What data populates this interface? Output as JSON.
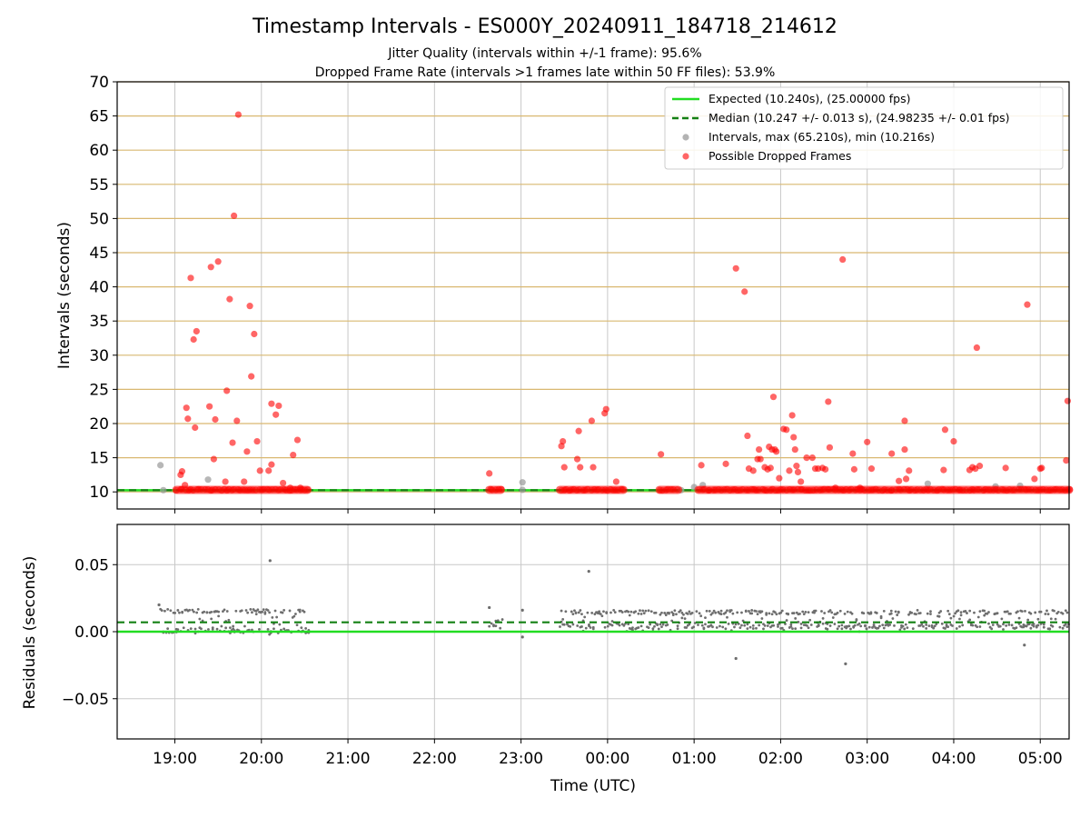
{
  "title": "Timestamp Intervals - ES000Y_20240911_184718_214612",
  "subtitle_1": "Jitter Quality (intervals within +/-1 frame): 95.6%",
  "subtitle_2": "Dropped Frame Rate (intervals >1 frames late within 50 FF files): 53.9%",
  "colors": {
    "expected": "#22dd22",
    "median": "#138013",
    "intervals": "#999999",
    "dropped": "#ff0000",
    "grid_top": "#d9b871",
    "grid": "#c8c8c8",
    "residual": "#6e6e6e"
  },
  "chart_data": [
    {
      "type": "scatter",
      "ylabel": "Intervals (seconds)",
      "ylim": [
        7.5,
        70
      ],
      "yticks": [
        "10",
        "15",
        "20",
        "25",
        "30",
        "35",
        "40",
        "45",
        "50",
        "55",
        "60",
        "65",
        "70"
      ],
      "xlim": [
        "2024-09-11 18:20",
        "2024-09-12 05:20"
      ],
      "grid": "horizontal (y)",
      "legend_position": "top-right",
      "legend": [
        "Expected (10.240s), (25.00000 fps)",
        "Median (10.247 +/- 0.013 s), (24.98235 +/- 0.01 fps)",
        "Intervals, max (65.210s), min (10.216s)",
        "Possible Dropped Frames"
      ],
      "expected_interval": 10.24,
      "median_interval": 10.247,
      "series": [
        {
          "name": "Intervals, max (65.210s), min (10.216s)",
          "points": [
            [
              "18:50",
              13.9
            ],
            [
              "18:52",
              10.25
            ],
            [
              "19:23",
              11.8
            ],
            [
              "23:01",
              11.4
            ],
            [
              "23:01",
              10.3
            ],
            [
              "00:51",
              10.25
            ],
            [
              "01:00",
              10.7
            ],
            [
              "01:06",
              11.0
            ],
            [
              "02:56",
              10.4
            ],
            [
              "03:42",
              11.2
            ],
            [
              "04:29",
              10.8
            ],
            [
              "04:46",
              10.9
            ]
          ]
        },
        {
          "name": "Possible Dropped Frames",
          "points": [
            [
              "19:04",
              12.5
            ],
            [
              "19:05",
              13.0
            ],
            [
              "19:07",
              11.0
            ],
            [
              "19:08",
              22.3
            ],
            [
              "19:09",
              20.7
            ],
            [
              "19:11",
              41.3
            ],
            [
              "19:13",
              32.3
            ],
            [
              "19:14",
              19.4
            ],
            [
              "19:15",
              33.5
            ],
            [
              "19:24",
              22.5
            ],
            [
              "19:25",
              42.9
            ],
            [
              "19:27",
              14.8
            ],
            [
              "19:28",
              20.6
            ],
            [
              "19:30",
              43.7
            ],
            [
              "19:35",
              11.5
            ],
            [
              "19:36",
              24.8
            ],
            [
              "19:38",
              38.2
            ],
            [
              "19:40",
              17.2
            ],
            [
              "19:41",
              50.4
            ],
            [
              "19:43",
              20.4
            ],
            [
              "19:44",
              65.2
            ],
            [
              "19:48",
              11.5
            ],
            [
              "19:50",
              15.9
            ],
            [
              "19:52",
              37.2
            ],
            [
              "19:53",
              26.9
            ],
            [
              "19:55",
              33.1
            ],
            [
              "19:57",
              17.4
            ],
            [
              "19:59",
              13.1
            ],
            [
              "20:05",
              13.1
            ],
            [
              "20:07",
              14.0
            ],
            [
              "20:07",
              22.9
            ],
            [
              "20:10",
              21.3
            ],
            [
              "20:12",
              22.6
            ],
            [
              "20:15",
              11.3
            ],
            [
              "20:20",
              10.6
            ],
            [
              "20:22",
              15.4
            ],
            [
              "20:25",
              17.6
            ],
            [
              "20:27",
              10.6
            ],
            [
              "22:38",
              12.7
            ],
            [
              "23:28",
              16.7
            ],
            [
              "23:29",
              17.4
            ],
            [
              "23:30",
              13.6
            ],
            [
              "23:39",
              14.8
            ],
            [
              "23:40",
              18.9
            ],
            [
              "23:41",
              13.6
            ],
            [
              "23:49",
              20.4
            ],
            [
              "23:50",
              13.6
            ],
            [
              "23:58",
              21.5
            ],
            [
              "23:59",
              22.1
            ],
            [
              "00:06",
              11.5
            ],
            [
              "00:37",
              15.5
            ],
            [
              "01:05",
              13.9
            ],
            [
              "01:22",
              14.1
            ],
            [
              "01:29",
              42.7
            ],
            [
              "01:35",
              39.3
            ],
            [
              "01:37",
              18.2
            ],
            [
              "01:38",
              13.4
            ],
            [
              "01:41",
              13.1
            ],
            [
              "01:44",
              14.8
            ],
            [
              "01:45",
              16.2
            ],
            [
              "01:46",
              14.8
            ],
            [
              "01:49",
              13.6
            ],
            [
              "01:51",
              13.3
            ],
            [
              "01:52",
              16.6
            ],
            [
              "01:53",
              13.5
            ],
            [
              "01:54",
              16.2
            ],
            [
              "01:55",
              23.9
            ],
            [
              "01:56",
              16.2
            ],
            [
              "01:57",
              15.9
            ],
            [
              "01:59",
              12.0
            ],
            [
              "02:02",
              19.2
            ],
            [
              "02:04",
              19.1
            ],
            [
              "02:06",
              13.1
            ],
            [
              "02:08",
              21.2
            ],
            [
              "02:09",
              18.0
            ],
            [
              "02:10",
              16.2
            ],
            [
              "02:11",
              13.8
            ],
            [
              "02:12",
              12.9
            ],
            [
              "02:14",
              11.5
            ],
            [
              "02:18",
              15.0
            ],
            [
              "02:22",
              15.0
            ],
            [
              "02:24",
              13.4
            ],
            [
              "02:26",
              13.4
            ],
            [
              "02:29",
              13.5
            ],
            [
              "02:31",
              13.3
            ],
            [
              "02:33",
              23.2
            ],
            [
              "02:34",
              16.5
            ],
            [
              "02:38",
              10.6
            ],
            [
              "02:43",
              44.0
            ],
            [
              "02:50",
              15.6
            ],
            [
              "02:51",
              13.3
            ],
            [
              "02:55",
              10.6
            ],
            [
              "03:00",
              17.3
            ],
            [
              "03:03",
              13.4
            ],
            [
              "03:17",
              15.6
            ],
            [
              "03:22",
              11.6
            ],
            [
              "03:26",
              20.4
            ],
            [
              "03:26",
              16.2
            ],
            [
              "03:27",
              11.9
            ],
            [
              "03:29",
              13.1
            ],
            [
              "03:53",
              13.2
            ],
            [
              "03:54",
              19.1
            ],
            [
              "04:00",
              17.4
            ],
            [
              "04:11",
              13.2
            ],
            [
              "04:13",
              13.6
            ],
            [
              "04:15",
              13.4
            ],
            [
              "04:16",
              31.1
            ],
            [
              "04:18",
              13.8
            ],
            [
              "04:36",
              13.5
            ],
            [
              "04:51",
              37.4
            ],
            [
              "04:56",
              11.9
            ],
            [
              "05:00",
              13.4
            ],
            [
              "05:01",
              13.5
            ],
            [
              "05:18",
              14.6
            ],
            [
              "05:19",
              23.3
            ]
          ],
          "baseline_segments": [
            [
              "19:01",
              "20:32",
              10.3
            ],
            [
              "22:38",
              "22:46",
              10.3
            ],
            [
              "23:27",
              "00:11",
              10.3
            ],
            [
              "00:36",
              "00:49",
              10.3
            ],
            [
              "01:03",
              "05:20",
              10.3
            ]
          ]
        }
      ]
    },
    {
      "type": "scatter",
      "xlabel": "Time (UTC)",
      "ylabel": "Residuals (seconds)",
      "ylim": [
        -0.08,
        0.08
      ],
      "yticks": [
        "−0.05",
        "0.00",
        "0.05"
      ],
      "xlim": [
        "2024-09-11 18:20",
        "2024-09-12 05:20"
      ],
      "xticks": [
        "19:00",
        "20:00",
        "21:00",
        "22:00",
        "23:00",
        "00:00",
        "01:00",
        "02:00",
        "03:00",
        "04:00",
        "05:00"
      ],
      "grid": "both",
      "expected_line": 0.0,
      "median_line": 0.007,
      "outliers": [
        [
          "18:49",
          0.02
        ],
        [
          "20:06",
          0.053
        ],
        [
          "22:38",
          0.018
        ],
        [
          "23:01",
          0.016
        ],
        [
          "23:01",
          -0.004
        ],
        [
          "23:47",
          0.045
        ],
        [
          "01:29",
          -0.02
        ],
        [
          "02:45",
          -0.024
        ],
        [
          "04:49",
          -0.01
        ]
      ],
      "dense_clusters": [
        {
          "from": "18:50",
          "to": "20:33",
          "ymin": -0.003,
          "ymax": 0.017
        },
        {
          "from": "22:38",
          "to": "22:48",
          "ymin": 0.001,
          "ymax": 0.01
        },
        {
          "from": "23:27",
          "to": "05:20",
          "ymin": 0.0,
          "ymax": 0.016
        }
      ]
    }
  ]
}
